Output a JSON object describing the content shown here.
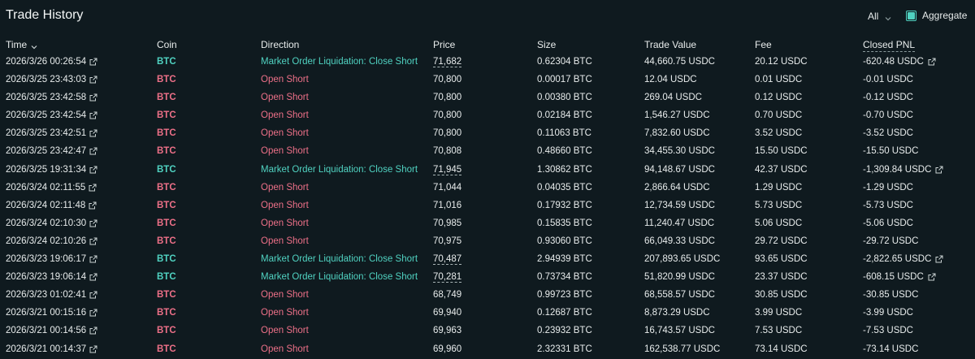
{
  "header": {
    "title": "Trade History",
    "filter_value": "All",
    "aggregate_label": "Aggregate",
    "aggregate_checked": true
  },
  "columns": {
    "time": "Time",
    "coin": "Coin",
    "direction": "Direction",
    "price": "Price",
    "size": "Size",
    "trade_value": "Trade Value",
    "fee": "Fee",
    "closed_pnl": "Closed PNL"
  },
  "colors": {
    "background": "#0f1a1f",
    "short": "#ed7088",
    "close": "#50d2c1",
    "text": "#e8ecec"
  },
  "rows": [
    {
      "time": "2026/3/26 00:26:54",
      "coin": "BTC",
      "direction": "Market Order Liquidation: Close Short",
      "kind": "close",
      "price": "71,682",
      "size": "0.62304 BTC",
      "value": "44,660.75 USDC",
      "fee": "20.12 USDC",
      "pnl": "-620.48 USDC",
      "pnl_link": true
    },
    {
      "time": "2026/3/25 23:43:03",
      "coin": "BTC",
      "direction": "Open Short",
      "kind": "short",
      "price": "70,800",
      "size": "0.00017 BTC",
      "value": "12.04 USDC",
      "fee": "0.01 USDC",
      "pnl": "-0.01 USDC",
      "pnl_link": false
    },
    {
      "time": "2026/3/25 23:42:58",
      "coin": "BTC",
      "direction": "Open Short",
      "kind": "short",
      "price": "70,800",
      "size": "0.00380 BTC",
      "value": "269.04 USDC",
      "fee": "0.12 USDC",
      "pnl": "-0.12 USDC",
      "pnl_link": false
    },
    {
      "time": "2026/3/25 23:42:54",
      "coin": "BTC",
      "direction": "Open Short",
      "kind": "short",
      "price": "70,800",
      "size": "0.02184 BTC",
      "value": "1,546.27 USDC",
      "fee": "0.70 USDC",
      "pnl": "-0.70 USDC",
      "pnl_link": false
    },
    {
      "time": "2026/3/25 23:42:51",
      "coin": "BTC",
      "direction": "Open Short",
      "kind": "short",
      "price": "70,800",
      "size": "0.11063 BTC",
      "value": "7,832.60 USDC",
      "fee": "3.52 USDC",
      "pnl": "-3.52 USDC",
      "pnl_link": false
    },
    {
      "time": "2026/3/25 23:42:47",
      "coin": "BTC",
      "direction": "Open Short",
      "kind": "short",
      "price": "70,808",
      "size": "0.48660 BTC",
      "value": "34,455.30 USDC",
      "fee": "15.50 USDC",
      "pnl": "-15.50 USDC",
      "pnl_link": false
    },
    {
      "time": "2026/3/25 19:31:34",
      "coin": "BTC",
      "direction": "Market Order Liquidation: Close Short",
      "kind": "close",
      "price": "71,945",
      "size": "1.30862 BTC",
      "value": "94,148.67 USDC",
      "fee": "42.37 USDC",
      "pnl": "-1,309.84 USDC",
      "pnl_link": true
    },
    {
      "time": "2026/3/24 02:11:55",
      "coin": "BTC",
      "direction": "Open Short",
      "kind": "short",
      "price": "71,044",
      "size": "0.04035 BTC",
      "value": "2,866.64 USDC",
      "fee": "1.29 USDC",
      "pnl": "-1.29 USDC",
      "pnl_link": false
    },
    {
      "time": "2026/3/24 02:11:48",
      "coin": "BTC",
      "direction": "Open Short",
      "kind": "short",
      "price": "71,016",
      "size": "0.17932 BTC",
      "value": "12,734.59 USDC",
      "fee": "5.73 USDC",
      "pnl": "-5.73 USDC",
      "pnl_link": false
    },
    {
      "time": "2026/3/24 02:10:30",
      "coin": "BTC",
      "direction": "Open Short",
      "kind": "short",
      "price": "70,985",
      "size": "0.15835 BTC",
      "value": "11,240.47 USDC",
      "fee": "5.06 USDC",
      "pnl": "-5.06 USDC",
      "pnl_link": false
    },
    {
      "time": "2026/3/24 02:10:26",
      "coin": "BTC",
      "direction": "Open Short",
      "kind": "short",
      "price": "70,975",
      "size": "0.93060 BTC",
      "value": "66,049.33 USDC",
      "fee": "29.72 USDC",
      "pnl": "-29.72 USDC",
      "pnl_link": false
    },
    {
      "time": "2026/3/23 19:06:17",
      "coin": "BTC",
      "direction": "Market Order Liquidation: Close Short",
      "kind": "close",
      "price": "70,487",
      "size": "2.94939 BTC",
      "value": "207,893.65 USDC",
      "fee": "93.65 USDC",
      "pnl": "-2,822.65 USDC",
      "pnl_link": true
    },
    {
      "time": "2026/3/23 19:06:14",
      "coin": "BTC",
      "direction": "Market Order Liquidation: Close Short",
      "kind": "close",
      "price": "70,281",
      "size": "0.73734 BTC",
      "value": "51,820.99 USDC",
      "fee": "23.37 USDC",
      "pnl": "-608.15 USDC",
      "pnl_link": true
    },
    {
      "time": "2026/3/23 01:02:41",
      "coin": "BTC",
      "direction": "Open Short",
      "kind": "short",
      "price": "68,749",
      "size": "0.99723 BTC",
      "value": "68,558.57 USDC",
      "fee": "30.85 USDC",
      "pnl": "-30.85 USDC",
      "pnl_link": false
    },
    {
      "time": "2026/3/21 00:15:16",
      "coin": "BTC",
      "direction": "Open Short",
      "kind": "short",
      "price": "69,940",
      "size": "0.12687 BTC",
      "value": "8,873.29 USDC",
      "fee": "3.99 USDC",
      "pnl": "-3.99 USDC",
      "pnl_link": false
    },
    {
      "time": "2026/3/21 00:14:56",
      "coin": "BTC",
      "direction": "Open Short",
      "kind": "short",
      "price": "69,963",
      "size": "0.23932 BTC",
      "value": "16,743.57 USDC",
      "fee": "7.53 USDC",
      "pnl": "-7.53 USDC",
      "pnl_link": false
    },
    {
      "time": "2026/3/21 00:14:37",
      "coin": "BTC",
      "direction": "Open Short",
      "kind": "short",
      "price": "69,960",
      "size": "2.32331 BTC",
      "value": "162,538.77 USDC",
      "fee": "73.14 USDC",
      "pnl": "-73.14 USDC",
      "pnl_link": false
    }
  ]
}
